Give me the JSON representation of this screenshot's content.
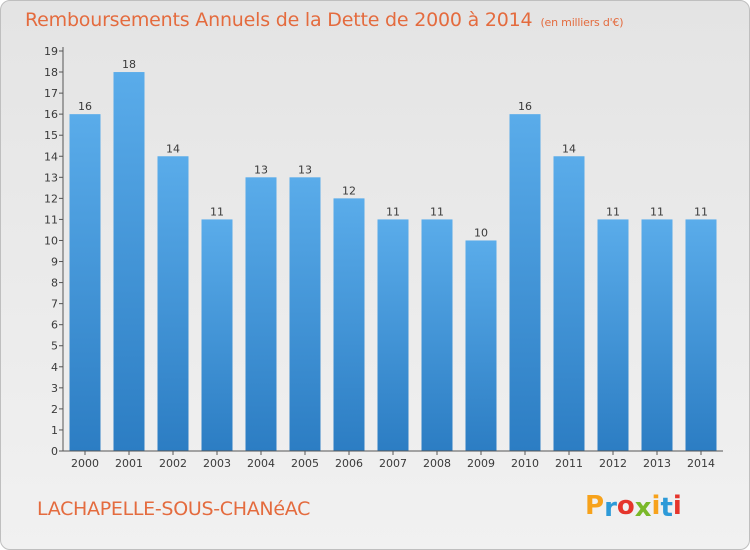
{
  "header": {
    "title": "Remboursements Annuels de la Dette de 2000 à 2014",
    "subtitle": "(en milliers d'€)"
  },
  "footer": {
    "commune": "LACHAPELLE-SOUS-CHANéAC",
    "logo_letters": [
      "P",
      "r",
      "o",
      "x",
      "i",
      "t",
      "i"
    ]
  },
  "colors": {
    "title": "#e46b3e",
    "bar_light": "#5aacea",
    "bar_dark": "#2c7dc3",
    "logo": [
      "#f7a21b",
      "#2d9ad8",
      "#e5352c",
      "#7ab829",
      "#f7a21b",
      "#2d9ad8",
      "#e5352c"
    ]
  },
  "chart_data": {
    "type": "bar",
    "title": "Remboursements Annuels de la Dette de 2000 à 2014",
    "subtitle": "(en milliers d'€)",
    "xlabel": "",
    "ylabel": "",
    "categories": [
      "2000",
      "2001",
      "2002",
      "2003",
      "2004",
      "2005",
      "2006",
      "2007",
      "2008",
      "2009",
      "2010",
      "2011",
      "2012",
      "2013",
      "2014"
    ],
    "values": [
      16,
      18,
      14,
      11,
      13,
      13,
      12,
      11,
      11,
      10,
      16,
      14,
      11,
      11,
      11
    ],
    "ylim": [
      0,
      19
    ],
    "yticks": [
      "0",
      "1",
      "2",
      "3",
      "4",
      "5",
      "6",
      "7",
      "8",
      "9",
      "10",
      "11",
      "12",
      "13",
      "14",
      "15",
      "16",
      "17",
      "18",
      "19"
    ],
    "grid": false,
    "legend": "none"
  }
}
